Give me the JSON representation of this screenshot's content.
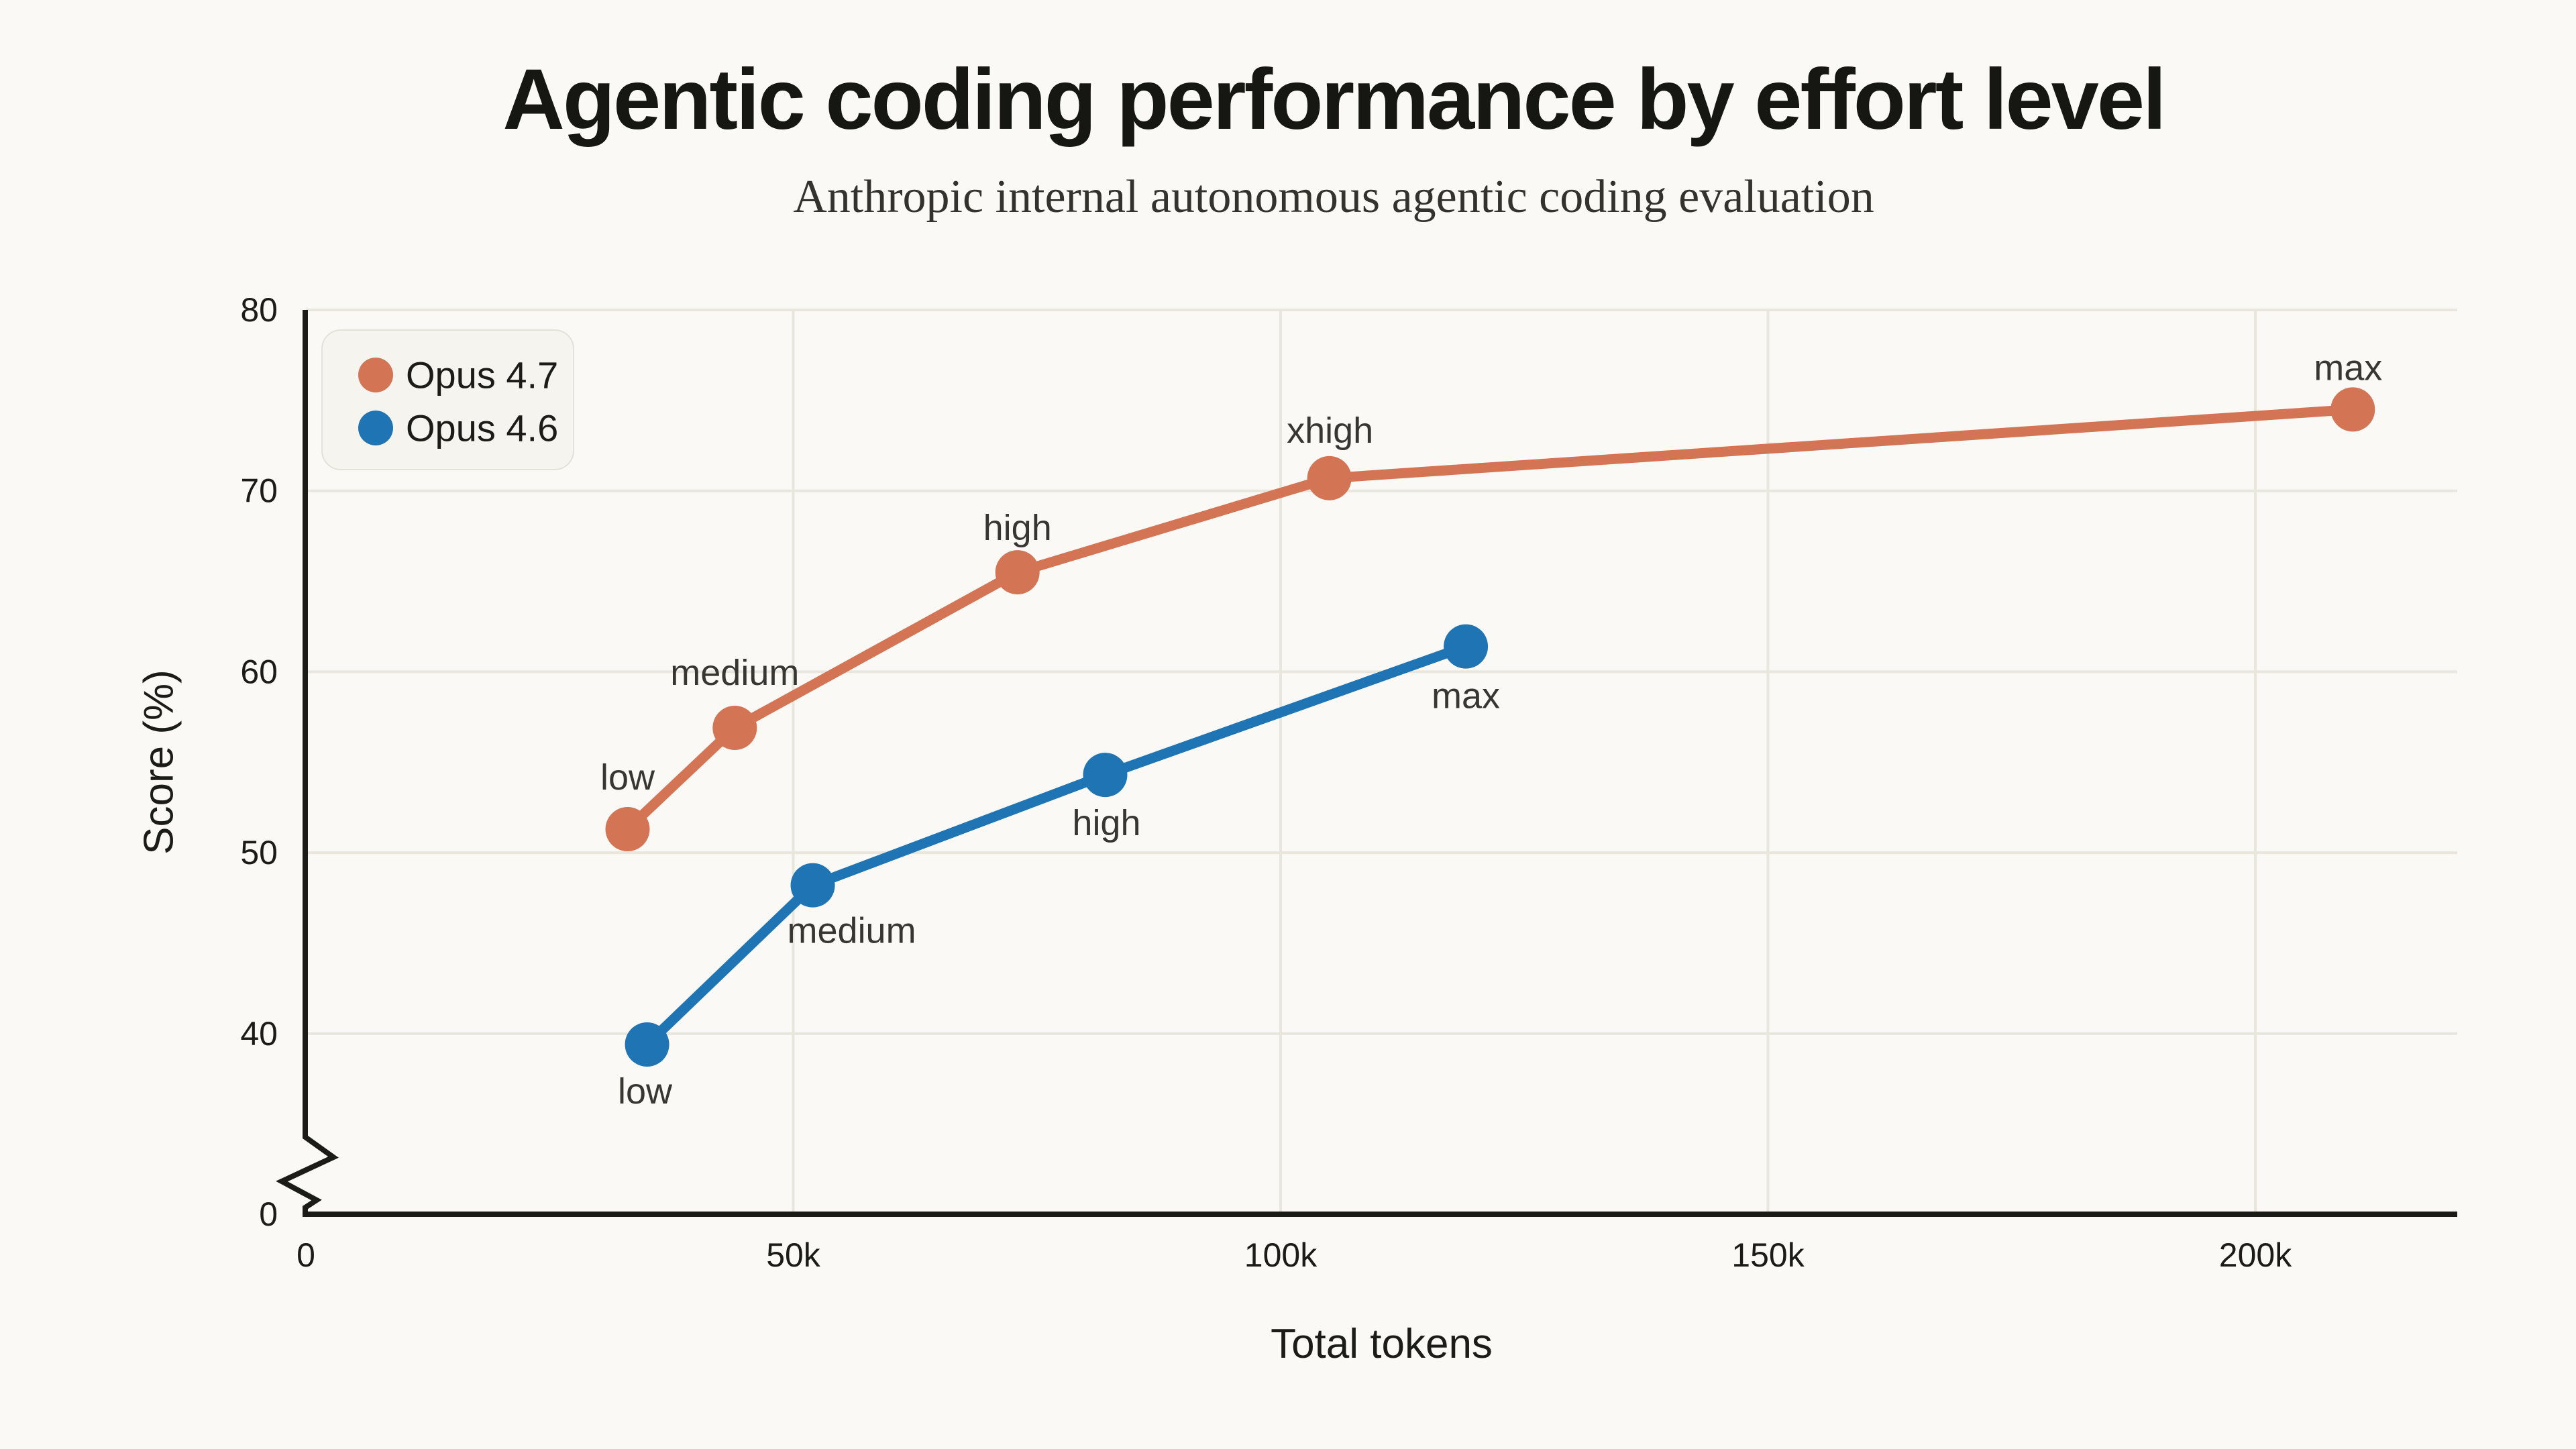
{
  "page": {
    "background": "#faf9f6"
  },
  "header": {
    "title": "Agentic coding performance by effort level",
    "subtitle": "Anthropic internal autonomous agentic coding evaluation"
  },
  "colors": {
    "background": "#faf9f6",
    "grid": "#e8e6dd",
    "axis": "#1b1b18",
    "title_text": "#161613",
    "subtitle_text": "#33322c",
    "tick_text": "#1b1b18",
    "point_label_text": "#373630",
    "legend_fill": "#f5f4ee",
    "legend_border": "#e4e2d8",
    "opus47": "#d37454",
    "opus46": "#1f74b4"
  },
  "legend": {
    "items": [
      {
        "label": "Opus 4.7",
        "series_index": 0
      },
      {
        "label": "Opus 4.6",
        "series_index": 1
      }
    ]
  },
  "chart_data": {
    "type": "line",
    "title": "Agentic coding performance by effort level",
    "subtitle": "Anthropic internal autonomous agentic coding evaluation",
    "xlabel": "Total tokens",
    "ylabel": "Score (%)",
    "grid": true,
    "legend_position": "upper-left",
    "y_axis_break": true,
    "ylim": [
      0,
      80
    ],
    "xlim_tokens": [
      0,
      220000
    ],
    "x_ticks": [
      {
        "value_tokens": 0,
        "label": "0"
      },
      {
        "value_tokens": 50000,
        "label": "50k"
      },
      {
        "value_tokens": 100000,
        "label": "100k"
      },
      {
        "value_tokens": 150000,
        "label": "150k"
      },
      {
        "value_tokens": 200000,
        "label": "200k"
      }
    ],
    "y_ticks": [
      {
        "value": 80,
        "label": "80"
      },
      {
        "value": 70,
        "label": "70"
      },
      {
        "value": 60,
        "label": "60"
      },
      {
        "value": 50,
        "label": "50"
      },
      {
        "value": 40,
        "label": "40"
      },
      {
        "value": 0,
        "label": "0"
      }
    ],
    "series": [
      {
        "name": "Opus 4.7",
        "color_key": "opus47",
        "points": [
          {
            "label": "low",
            "tokens": 33000,
            "score": 51.3
          },
          {
            "label": "medium",
            "tokens": 44000,
            "score": 56.9
          },
          {
            "label": "high",
            "tokens": 73000,
            "score": 65.5
          },
          {
            "label": "xhigh",
            "tokens": 105000,
            "score": 70.7
          },
          {
            "label": "max",
            "tokens": 210000,
            "score": 74.5
          }
        ]
      },
      {
        "name": "Opus 4.6",
        "color_key": "opus46",
        "points": [
          {
            "label": "low",
            "tokens": 35000,
            "score": 39.4
          },
          {
            "label": "medium",
            "tokens": 52000,
            "score": 48.2
          },
          {
            "label": "high",
            "tokens": 82000,
            "score": 54.3
          },
          {
            "label": "max",
            "tokens": 119000,
            "score": 61.4
          }
        ]
      }
    ]
  }
}
